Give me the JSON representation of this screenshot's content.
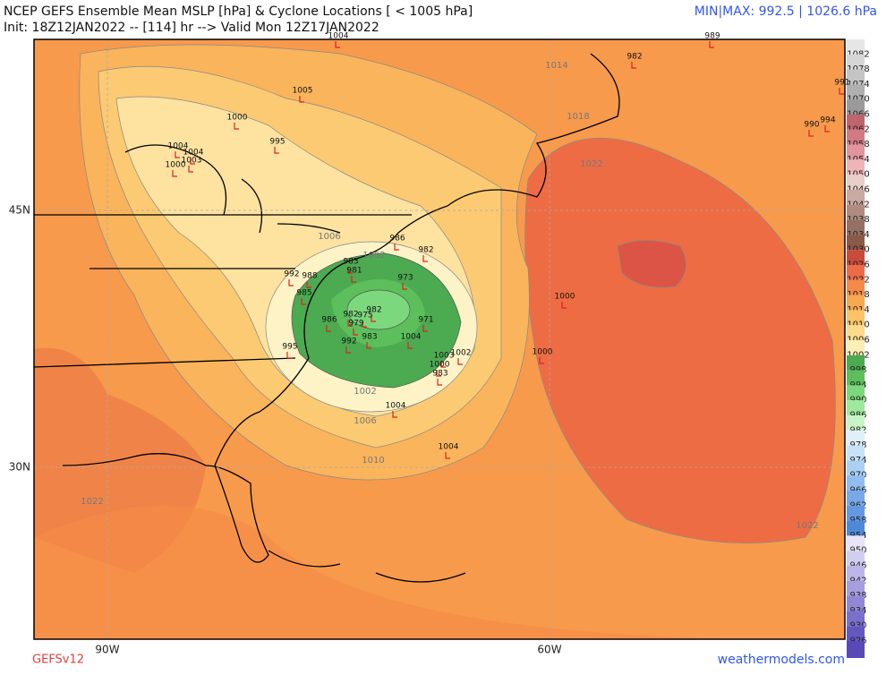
{
  "header": {
    "title": "NCEP GEFS Ensemble Mean MSLP [hPa] & Cyclone Locations [ < 1005 hPa]",
    "subtitle": "Init: 18Z12JAN2022 -- [114] hr --> Valid Mon 12Z17JAN2022",
    "minmax": "MIN|MAX: 992.5 | 1026.6 hPa"
  },
  "footer": {
    "model": "GEFSv12",
    "site": "weathermodels.com"
  },
  "axes": {
    "lon_labels": [
      "90W",
      "60W"
    ],
    "lat_labels": [
      "45N",
      "30N"
    ]
  },
  "colorbar": {
    "levels": [
      1082,
      1078,
      1074,
      1070,
      1066,
      1062,
      1058,
      1054,
      1050,
      1046,
      1042,
      1038,
      1034,
      1030,
      1026,
      1022,
      1018,
      1014,
      1010,
      1006,
      1002,
      998,
      994,
      990,
      986,
      982,
      978,
      974,
      970,
      966,
      962,
      958,
      954,
      950,
      946,
      942,
      938,
      934,
      930,
      926
    ],
    "colors": [
      "#e6e6e6",
      "#d6d6d6",
      "#c4c4c4",
      "#b0b0b0",
      "#9a9a9a",
      "#c0646e",
      "#d27a84",
      "#e2959c",
      "#f0b4b8",
      "#e8cfc8",
      "#c8aaa0",
      "#b08c80",
      "#967064",
      "#8c5848",
      "#c94b3c",
      "#ec6a48",
      "#f58a48",
      "#f8a850",
      "#fbc266",
      "#fcdb8c",
      "#fdeeb6",
      "#4caa50",
      "#5cbf5c",
      "#7cd87c",
      "#a0e8a0",
      "#c8f4c8",
      "#e0f0fa",
      "#c8e2f8",
      "#acd0f4",
      "#90bcee",
      "#78a8e8",
      "#6498e0",
      "#5088d8",
      "#e6e4f6",
      "#d2cef0",
      "#bcb6e8",
      "#a69ee0",
      "#9088d6",
      "#7a70cc",
      "#6458c0"
    ]
  },
  "contour_labels": [
    1014,
    1018,
    1022,
    1006,
    1002,
    1002,
    1006,
    1010,
    1022,
    1022
  ],
  "cyclone_locations": [
    1004,
    989,
    982,
    991,
    1005,
    1000,
    990,
    994,
    995,
    1004,
    1004,
    1003,
    1000,
    986,
    982,
    983,
    981,
    992,
    988,
    973,
    985,
    1000,
    982,
    982,
    975,
    971,
    979,
    986,
    992,
    983,
    1004,
    995,
    1002,
    1000,
    1003,
    1000,
    983,
    1004,
    1004
  ]
}
